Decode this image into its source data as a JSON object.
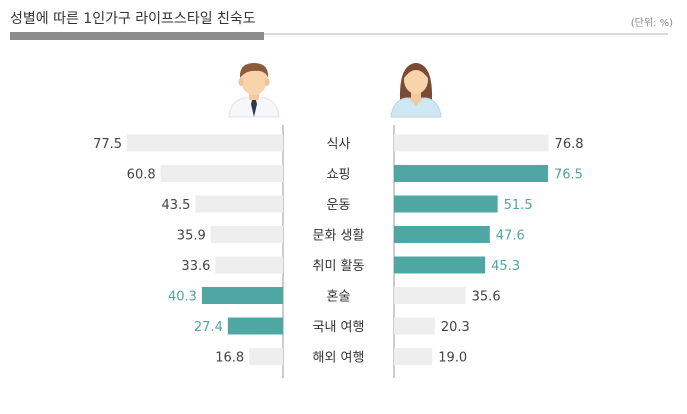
{
  "header": {
    "title": "성별에 따른 1인가구 라이프스타일 친숙도",
    "unit": "(단위: %)"
  },
  "colors": {
    "highlight": "#4fa7a3",
    "base": "#eeeeee",
    "highlight_text": "#4fa7a3",
    "base_text": "#444444"
  },
  "chart_data": {
    "type": "bar",
    "categories": [
      "식사",
      "쇼핑",
      "운동",
      "문화 생활",
      "취미 활동",
      "혼술",
      "국내 여행",
      "해외 여행"
    ],
    "series": [
      {
        "group": "male",
        "values": [
          77.5,
          60.8,
          43.5,
          35.9,
          33.6,
          40.3,
          27.4,
          16.8
        ],
        "value_labels": [
          "77.5",
          "60.8",
          "43.5",
          "35.9",
          "33.6",
          "40.3",
          "27.4",
          "16.8"
        ],
        "highlight": [
          false,
          false,
          false,
          false,
          false,
          true,
          true,
          false
        ]
      },
      {
        "group": "female",
        "values": [
          76.8,
          76.5,
          51.5,
          47.6,
          45.3,
          35.6,
          20.3,
          19.0
        ],
        "value_labels": [
          "76.8",
          "76.5",
          "51.5",
          "47.6",
          "45.3",
          "35.6",
          "20.3",
          "19.0"
        ],
        "highlight": [
          false,
          true,
          true,
          true,
          true,
          false,
          false,
          false
        ]
      }
    ],
    "xlim": [
      0,
      80
    ],
    "grid": false,
    "legend": "icons above columns (male left, female right)"
  }
}
